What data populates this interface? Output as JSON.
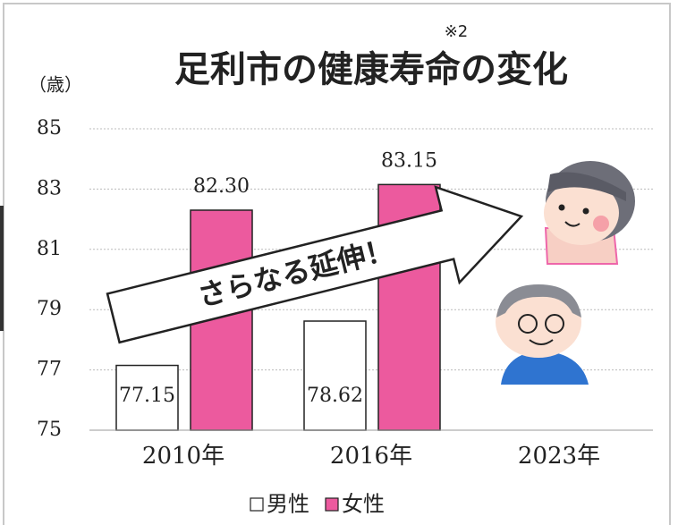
{
  "chart_data": {
    "type": "bar",
    "title": "足利市の健康寿命の変化",
    "title_note": "※2",
    "y_label": "（歳）",
    "annotation": "さらなる延伸！",
    "categories": [
      "2010年",
      "2016年",
      "2023年"
    ],
    "series": [
      {
        "name": "男性",
        "color": "#ffffff",
        "values": [
          77.15,
          78.62,
          null
        ],
        "value_labels": [
          "77.15",
          "78.62",
          null
        ]
      },
      {
        "name": "女性",
        "color": "#ec5a9e",
        "values": [
          82.3,
          83.15,
          null
        ],
        "value_labels": [
          "82.30",
          "83.15",
          null
        ]
      }
    ],
    "ylim": [
      75,
      85
    ],
    "yticks": [
      75,
      77,
      79,
      81,
      83,
      85
    ],
    "grid": true,
    "legend": "bottom"
  }
}
